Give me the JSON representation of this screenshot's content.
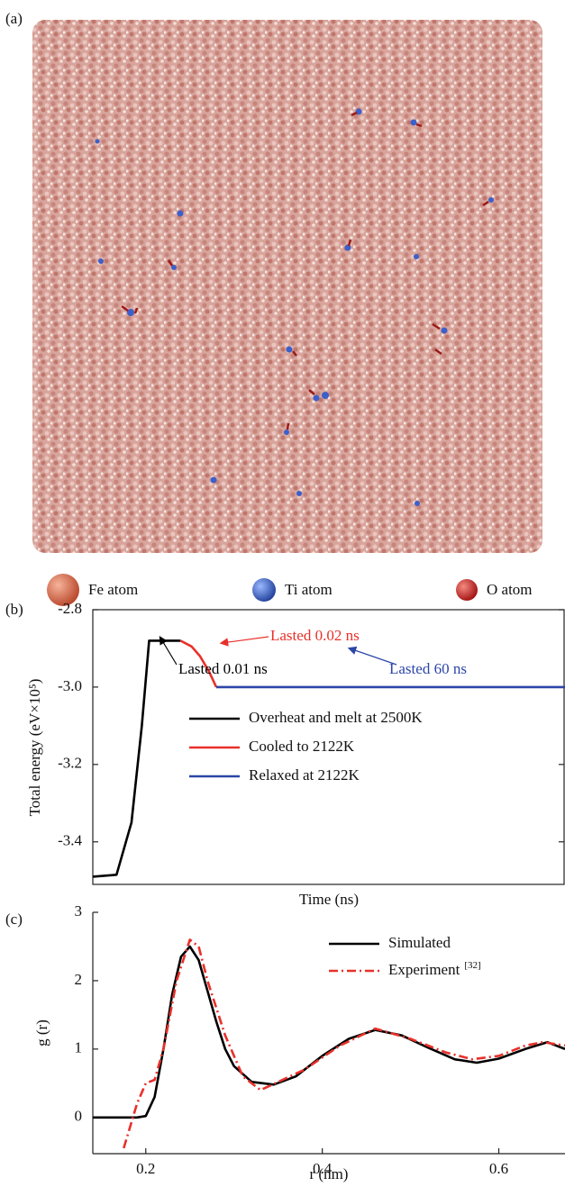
{
  "panel_a": {
    "label": "(a)",
    "legend": [
      "Fe atom",
      "Ti atom",
      "O atom"
    ]
  },
  "chart_data": [
    {
      "type": "line",
      "panel_label": "(b)",
      "y_label": "Total energy (eV×10⁵)",
      "x_label": "Time (ns)",
      "xscale": "log",
      "xlim": [
        0.0001,
        100
      ],
      "ylim": [
        -3.51,
        -2.8
      ],
      "yticks": [
        -2.8,
        {
          "value": -3.0,
          "label": "-3.0"
        },
        -3.2,
        -3.4
      ],
      "frame": "box",
      "series": [
        {
          "name": "Overheat and melt at 2500K",
          "color": "#000000",
          "style": "solid",
          "x": [
            0.0001,
            0.0002,
            0.00031,
            0.00042,
            0.00052,
            0.0009,
            0.0013
          ],
          "values": [
            -3.49,
            -3.485,
            -3.35,
            -3.1,
            -2.88,
            -2.88,
            -2.88
          ]
        },
        {
          "name": "Cooled to 2122K",
          "color": "#e8302a",
          "style": "solid",
          "x": [
            0.0013,
            0.0018,
            0.0023,
            0.003,
            0.0037
          ],
          "values": [
            -2.88,
            -2.895,
            -2.92,
            -2.96,
            -3.0
          ]
        },
        {
          "name": "Relaxed at 2122K",
          "color": "#2c46a8",
          "style": "solid",
          "x": [
            0.0037,
            0.01,
            0.1,
            1,
            10,
            100
          ],
          "values": [
            -3.0,
            -3.0,
            -3.0,
            -3.0,
            -3.0,
            -3.0
          ]
        }
      ],
      "annotations": [
        {
          "text": "Lasted 0.02 ns",
          "color": "#e8302a"
        },
        {
          "text": "Lasted 0.01 ns",
          "color": "#000000"
        },
        {
          "text": "Lasted 60 ns",
          "color": "#2c46a8"
        }
      ]
    },
    {
      "type": "line",
      "panel_label": "(c)",
      "y_label": "g (r)",
      "x_label": "r (nm)",
      "xlim": [
        0.14,
        0.675
      ],
      "ylim": [
        -0.53,
        3
      ],
      "xticks": [
        0.2,
        0.4,
        0.6
      ],
      "yticks": [
        0,
        1,
        2,
        3
      ],
      "frame": "open",
      "series": [
        {
          "name": "Simulated",
          "color": "#000000",
          "style": "solid",
          "x": [
            0.14,
            0.19,
            0.2,
            0.21,
            0.22,
            0.23,
            0.24,
            0.25,
            0.26,
            0.27,
            0.28,
            0.29,
            0.3,
            0.32,
            0.345,
            0.37,
            0.4,
            0.43,
            0.46,
            0.49,
            0.52,
            0.55,
            0.575,
            0.6,
            0.63,
            0.655,
            0.675
          ],
          "values": [
            0,
            0,
            0.02,
            0.3,
            1.0,
            1.8,
            2.35,
            2.5,
            2.3,
            1.85,
            1.4,
            1.0,
            0.75,
            0.52,
            0.48,
            0.6,
            0.9,
            1.15,
            1.28,
            1.2,
            1.02,
            0.85,
            0.8,
            0.86,
            1.0,
            1.1,
            1.0
          ]
        },
        {
          "name": "Experiment",
          "reference": "[32]",
          "color": "#e8302a",
          "style": "dashdot",
          "x": [
            0.175,
            0.19,
            0.2,
            0.21,
            0.22,
            0.235,
            0.25,
            0.26,
            0.27,
            0.29,
            0.31,
            0.33,
            0.35,
            0.38,
            0.42,
            0.46,
            0.5,
            0.54,
            0.57,
            0.6,
            0.63,
            0.65,
            0.675
          ],
          "values": [
            -0.45,
            0.2,
            0.5,
            0.55,
            1.0,
            2.0,
            2.6,
            2.5,
            2.0,
            1.2,
            0.6,
            0.4,
            0.52,
            0.7,
            1.05,
            1.3,
            1.15,
            0.95,
            0.85,
            0.9,
            1.05,
            1.1,
            1.05
          ]
        }
      ]
    }
  ]
}
